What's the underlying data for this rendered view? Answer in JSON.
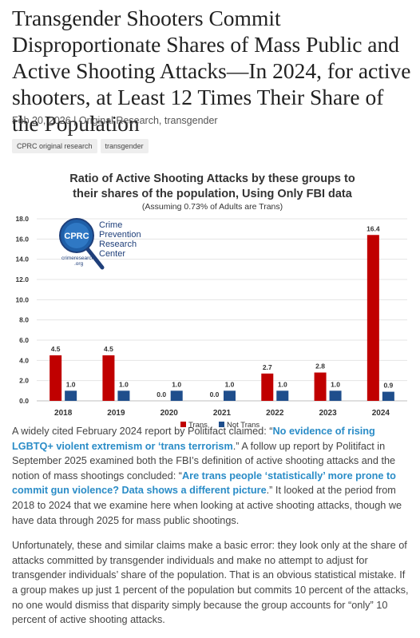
{
  "article": {
    "title": "Transgender Shooters Commit Disproportionate Shares of Mass Public and Active Shooting Attacks—In 2024, for active shooters, at Least 12 Times Their Share of the Population",
    "date": "Feb 20, 2026",
    "sep": " | ",
    "cat1": "Original Research",
    "comma": ", ",
    "cat2": "transgender",
    "tags": [
      "CPRC original research",
      "transgender"
    ]
  },
  "logo": {
    "initials": "CPRC",
    "line1": "Crime",
    "line2": "Prevention",
    "line3": "Research",
    "line4": "Center",
    "url1": "crimeresearch",
    "url2": ".org"
  },
  "chart_data": {
    "type": "bar",
    "title_line1": "Ratio of Active Shooting Attacks by these groups to",
    "title_line2": "their shares of the population, Using Only FBI data",
    "subtitle": "(Assuming 0.73% of Adults are Trans)",
    "categories": [
      "2018",
      "2019",
      "2020",
      "2021",
      "2022",
      "2023",
      "2024"
    ],
    "series": [
      {
        "name": "Trans",
        "color": "#c00000",
        "values": [
          4.5,
          4.5,
          0.0,
          0.0,
          2.7,
          2.8,
          16.4
        ],
        "labels": [
          "4.5",
          "4.5",
          "0.0",
          "0.0",
          "2.7",
          "2.8",
          "16.4"
        ]
      },
      {
        "name": "Not Trans",
        "color": "#1f4e8c",
        "values": [
          1.0,
          1.0,
          1.0,
          1.0,
          1.0,
          1.0,
          0.9
        ],
        "labels": [
          "1.0",
          "1.0",
          "1.0",
          "1.0",
          "1.0",
          "1.0",
          "0.9"
        ]
      }
    ],
    "yticks": [
      "0.0",
      "2.0",
      "4.0",
      "6.0",
      "8.0",
      "10.0",
      "12.0",
      "14.0",
      "16.0",
      "18.0"
    ],
    "ylim": [
      0,
      18
    ],
    "legend_position": "bottom"
  },
  "body": {
    "p1_a": "A widely cited February 2024 report by Politifact claimed: “",
    "p1_link1": "No evidence of rising LGBTQ+ violent extremism or ‘trans terrorism",
    "p1_b": ".” A follow up report by Politifact in September 2025 examined both the FBI’s definition of active shooting attacks and the notion of mass shootings concluded: “",
    "p1_link2": "Are trans people ‘statistically’ more prone to commit gun violence? Data shows a different picture",
    "p1_c": ".” It looked at the period from 2018 to 2024 that we examine here when looking at active shooting attacks, though we have data through 2025 for mass public shootings.",
    "p2": "Unfortunately, these and similar claims make a basic error: they look only at the share of attacks committed by transgender individuals and make no attempt to adjust for transgender individuals’ share of the population. That is an obvious statistical mistake. If a group makes up just 1 percent of the population but commits 10 percent of the attacks, no one would dismiss that disparity simply because the group accounts for “only” 10 percent of active shooting attacks."
  }
}
